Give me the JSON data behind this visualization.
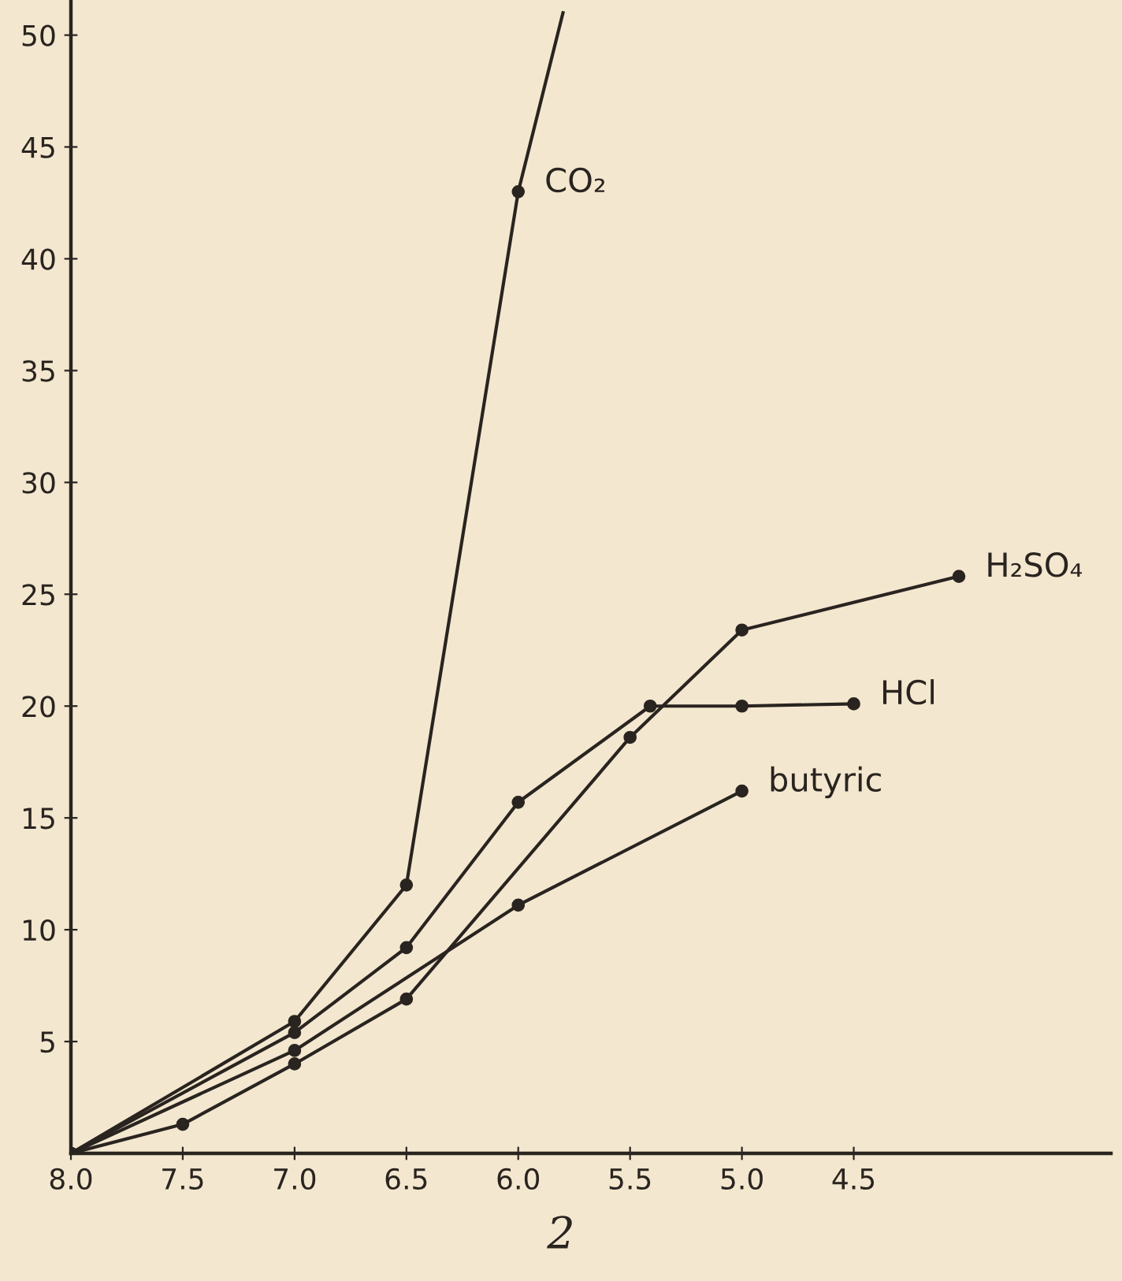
{
  "chart_data": {
    "type": "line",
    "xlim": [
      8,
      3.35
    ],
    "ylim": [
      0,
      51.5
    ],
    "xticks": [
      {
        "value": 8,
        "label": "8.0"
      },
      {
        "value": 7.5,
        "label": "7.5"
      },
      {
        "value": 7,
        "label": "7.0"
      },
      {
        "value": 6.5,
        "label": "6.5"
      },
      {
        "value": 6,
        "label": "6.0"
      },
      {
        "value": 5.5,
        "label": "5.5"
      },
      {
        "value": 5,
        "label": "5.0"
      },
      {
        "value": 4.5,
        "label": "4.5"
      }
    ],
    "yticks": [
      5,
      10,
      15,
      20,
      25,
      30,
      35,
      40,
      45,
      50
    ],
    "marker": "circle",
    "line_style": "solid",
    "grid": false,
    "series": [
      {
        "name": "CO₂",
        "color": "#2a2420",
        "x": [
          8,
          7,
          6.5,
          6,
          5.8
        ],
        "values": [
          0,
          5.9,
          12,
          43,
          51
        ]
      },
      {
        "name": "H₂SO₄",
        "color": "#2a2420",
        "x": [
          8,
          7.5,
          7,
          6.5,
          5.5,
          5,
          4.03
        ],
        "values": [
          0,
          1.3,
          4,
          6.9,
          18.6,
          23.4,
          25.8
        ]
      },
      {
        "name": "HCl",
        "color": "#2a2420",
        "x": [
          8,
          7,
          6.5,
          6,
          5.41,
          5,
          4.5
        ],
        "values": [
          0,
          5.4,
          9.2,
          15.7,
          20,
          20,
          20.1
        ]
      },
      {
        "name": "butyric",
        "color": "#2a2420",
        "x": [
          8,
          7,
          6,
          5
        ],
        "values": [
          0,
          4.6,
          11.1,
          16.2
        ]
      }
    ],
    "annotations": [
      "2"
    ]
  }
}
